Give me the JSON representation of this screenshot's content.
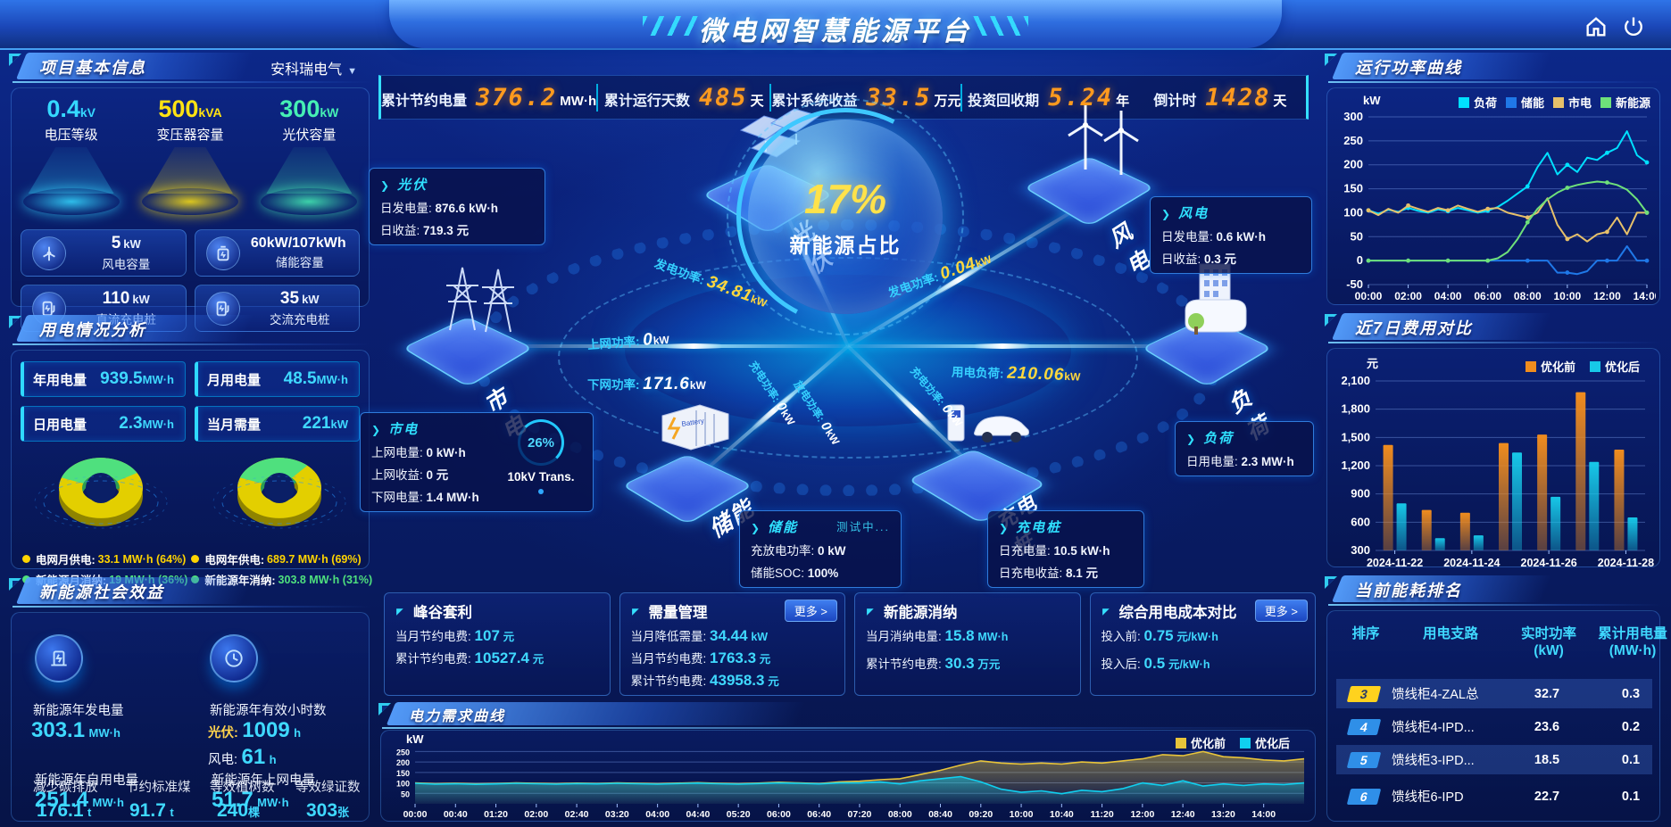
{
  "header": {
    "title": "微电网智慧能源平台"
  },
  "stats_bar": {
    "items": [
      {
        "label": "累计节约电量",
        "value": "376.2",
        "unit": "MW·h"
      },
      {
        "label": "累计运行天数",
        "value": "485",
        "unit": "天"
      },
      {
        "label": "累计系统收益",
        "value": "33.5",
        "unit": "万元"
      },
      {
        "label": "投资回收期",
        "value": "5.24",
        "unit": "年"
      },
      {
        "label": "倒计时",
        "value": "1428",
        "unit": "天"
      }
    ]
  },
  "project_info": {
    "title": "项目基本信息",
    "company": "安科瑞电气",
    "spotlights": [
      {
        "value": "0.4",
        "unit": "kV",
        "label": "电压等级",
        "color": "#35d8ff"
      },
      {
        "value": "500",
        "unit": "kVA",
        "label": "变压器容量",
        "color": "#ffe312"
      },
      {
        "value": "300",
        "unit": "kW",
        "label": "光伏容量",
        "color": "#46f0b4"
      }
    ],
    "cards": [
      {
        "icon": "wind-turbine-icon",
        "value": "5",
        "unit": "kW",
        "label": "风电容量"
      },
      {
        "icon": "battery-icon",
        "value": "60kW/107kWh",
        "unit": "",
        "label": "储能容量"
      },
      {
        "icon": "dc-charger-icon",
        "value": "110",
        "unit": "kW",
        "label": "直流充电桩"
      },
      {
        "icon": "ac-charger-icon",
        "value": "35",
        "unit": "kW",
        "label": "交流充电桩"
      }
    ]
  },
  "power_analysis": {
    "title": "用电情况分析",
    "chips": [
      {
        "label": "年用电量",
        "value": "939.5",
        "unit": "MW·h"
      },
      {
        "label": "月用电量",
        "value": "48.5",
        "unit": "MW·h"
      },
      {
        "label": "日用电量",
        "value": "2.3",
        "unit": "MW·h"
      },
      {
        "label": "当月需量",
        "value": "221",
        "unit": "kW"
      }
    ],
    "donuts": [
      {
        "grid_pct": 64,
        "renew_pct": 36,
        "legend": [
          {
            "label": "电网月供电:",
            "value": "33.1 MW·h (64%)",
            "color": "#ffd400"
          },
          {
            "label": "新能源月消纳:",
            "value": "19 MW·h (36%)",
            "color": "#4fe07e"
          }
        ]
      },
      {
        "grid_pct": 69,
        "renew_pct": 31,
        "legend": [
          {
            "label": "电网年供电:",
            "value": "689.7 MW·h (69%)",
            "color": "#ffd400"
          },
          {
            "label": "新能源年消纳:",
            "value": "303.8 MW·h (31%)",
            "color": "#4fe07e"
          }
        ]
      }
    ]
  },
  "social": {
    "title": "新能源社会效益",
    "gen": {
      "label": "新能源年发电量",
      "value": "303.1",
      "unit": "MW·h"
    },
    "hours": {
      "label": "新能源年有效小时数",
      "pv_label": "光伏:",
      "pv_value": "1009",
      "pv_unit": "h",
      "wind_label": "风电:",
      "wind_value": "61",
      "wind_unit": "h"
    },
    "self_use": {
      "label": "新能源年自用电量",
      "value": "251.4",
      "unit": "MW·h"
    },
    "co2": {
      "label": "减少碳排放",
      "value": "176.1",
      "unit": "t"
    },
    "coal": {
      "label": "节约标准煤",
      "value": "91.7",
      "unit": "t"
    },
    "to_grid": {
      "label": "新能源年上网电量",
      "value": "51.7",
      "unit": "MW·h"
    },
    "trees": {
      "label": "等效植树数",
      "value": "240",
      "unit": "棵"
    },
    "certs": {
      "label": "等效绿证数",
      "value": "303",
      "unit": "张"
    }
  },
  "diagram": {
    "center": {
      "pct": "17%",
      "label": "新能源占比"
    },
    "nodes": {
      "pv": "光伏",
      "wind": "风电",
      "grid": "市电",
      "storage": "储能",
      "charger": "充电桩",
      "load": "负荷"
    },
    "boxes": {
      "pv": {
        "title": "光伏",
        "rows": [
          {
            "k": "日发电量:",
            "v": "876.6 kW·h"
          },
          {
            "k": "日收益:",
            "v": "719.3 元"
          }
        ]
      },
      "wind": {
        "title": "风电",
        "rows": [
          {
            "k": "日发电量:",
            "v": "0.6 kW·h"
          },
          {
            "k": "日收益:",
            "v": "0.3 元"
          }
        ]
      },
      "grid": {
        "title": "市电",
        "rows": [
          {
            "k": "上网电量:",
            "v": "0 kW·h"
          },
          {
            "k": "上网收益:",
            "v": "0 元"
          },
          {
            "k": "下网电量:",
            "v": "1.4 MW·h"
          }
        ],
        "transformer": {
          "pct": "26%",
          "name": "10kV Trans."
        }
      },
      "storage": {
        "title": "储能",
        "status": "测试中...",
        "rows": [
          {
            "k": "充放电功率:",
            "v": "0 kW"
          },
          {
            "k": "储能SOC:",
            "v": "100%"
          }
        ]
      },
      "charger": {
        "title": "充电桩",
        "rows": [
          {
            "k": "日充电量:",
            "v": "10.5 kW·h"
          },
          {
            "k": "日充电收益:",
            "v": "8.1 元"
          }
        ]
      },
      "load": {
        "title": "负荷",
        "rows": [
          {
            "k": "日用电量:",
            "v": "2.3 MW·h"
          }
        ]
      }
    },
    "flows": [
      {
        "label": "发电功率:",
        "value": "34.81",
        "unit": "kW",
        "color": "#ffd83d"
      },
      {
        "label": "上网功率:",
        "value": "0",
        "unit": "kW",
        "color": "#ffffff"
      },
      {
        "label": "下网功率:",
        "value": "171.6",
        "unit": "kW",
        "color": "#ffffff"
      },
      {
        "label": "发电功率:",
        "value": "0.04",
        "unit": "kW",
        "color": "#ffd83d"
      },
      {
        "label": "用电负荷:",
        "value": "210.06",
        "unit": "kW",
        "color": "#ffd83d"
      },
      {
        "label": "充电功率:",
        "value": "0",
        "unit": "kW",
        "color": "#ffffff"
      },
      {
        "label": "放电功率:",
        "value": "0",
        "unit": "kW",
        "color": "#ffffff"
      },
      {
        "label": "充电功率:",
        "value": "0",
        "unit": "kW",
        "color": "#ffffff"
      }
    ]
  },
  "strategies": [
    {
      "title": "峰谷套利",
      "rows": [
        {
          "k": "当月节约电费:",
          "v": "107",
          "u": "元"
        },
        {
          "k": "累计节约电费:",
          "v": "10527.4",
          "u": "元"
        }
      ]
    },
    {
      "title": "需量管理",
      "more": "更多 >",
      "rows": [
        {
          "k": "当月降低需量:",
          "v": "34.44",
          "u": "kW"
        },
        {
          "k": "当月节约电费:",
          "v": "1763.3",
          "u": "元"
        },
        {
          "k": "累计节约电费:",
          "v": "43958.3",
          "u": "元"
        }
      ]
    },
    {
      "title": "新能源消纳",
      "rows": [
        {
          "k": "当月消纳电量:",
          "v": "15.8",
          "u": "MW·h"
        },
        {
          "k": "累计节约电费:",
          "v": "30.3",
          "u": "万元"
        }
      ]
    },
    {
      "title": "综合用电成本对比",
      "more": "更多 >",
      "rows": [
        {
          "k": "投入前:",
          "v": "0.75",
          "u": "元/kW·h"
        },
        {
          "k": "投入后:",
          "v": "0.5",
          "u": "元/kW·h"
        }
      ]
    }
  ],
  "panels": {
    "demand": "电力需求曲线",
    "power_curve": "运行功率曲线",
    "cost": "近7日费用对比",
    "ranking": "当前能耗排名"
  },
  "ranking": {
    "headers": [
      {
        "l1": "排序",
        "l2": ""
      },
      {
        "l1": "用电支路",
        "l2": ""
      },
      {
        "l1": "实时功率",
        "l2": "(kW)"
      },
      {
        "l1": "累计用电量",
        "l2": "(MW·h)"
      }
    ],
    "rows": [
      {
        "rank": "3",
        "badge_bg": "#ffd21e",
        "badge_fg": "#273a66",
        "branch": "馈线柜4-ZAL总",
        "power": "32.7",
        "energy": "0.3"
      },
      {
        "rank": "4",
        "badge_bg": "#2f8fe8",
        "badge_fg": "#ffffff",
        "branch": "馈线柜4-IPD...",
        "power": "23.6",
        "energy": "0.2"
      },
      {
        "rank": "5",
        "badge_bg": "#2f8fe8",
        "badge_fg": "#ffffff",
        "branch": "馈线柜3-IPD...",
        "power": "18.5",
        "energy": "0.1"
      },
      {
        "rank": "6",
        "badge_bg": "#2f8fe8",
        "badge_fg": "#ffffff",
        "branch": "馈线柜6-IPD",
        "power": "22.7",
        "energy": "0.1"
      }
    ]
  },
  "chart_data": [
    {
      "id": "power-curve",
      "type": "line",
      "title": "运行功率曲线",
      "ylabel": "kW",
      "ylim": [
        -50,
        300
      ],
      "yticks": [
        -50,
        0,
        50,
        100,
        150,
        200,
        250,
        300
      ],
      "x_labels": [
        "00:00",
        "02:00",
        "04:00",
        "06:00",
        "08:00",
        "10:00",
        "12:00",
        "14:00"
      ],
      "x_label_end_frac": 1,
      "legend_position": "top",
      "grid": true,
      "series": [
        {
          "name": "负荷",
          "color": "#00e0ff",
          "values": [
            105,
            98,
            106,
            102,
            110,
            104,
            100,
            107,
            103,
            110,
            105,
            100,
            104,
            112,
            125,
            140,
            155,
            195,
            225,
            180,
            200,
            185,
            215,
            210,
            225,
            235,
            270,
            220,
            205
          ]
        },
        {
          "name": "储能",
          "color": "#1f78e8",
          "values": [
            0,
            0,
            0,
            0,
            0,
            0,
            0,
            0,
            0,
            0,
            0,
            0,
            0,
            0,
            0,
            0,
            0,
            0,
            0,
            -25,
            -25,
            -28,
            -22,
            0,
            0,
            0,
            30,
            0,
            0
          ]
        },
        {
          "name": "市电",
          "color": "#e6c06a",
          "values": [
            105,
            95,
            108,
            100,
            115,
            108,
            102,
            110,
            105,
            115,
            108,
            102,
            108,
            110,
            100,
            95,
            90,
            100,
            130,
            75,
            45,
            55,
            40,
            55,
            60,
            90,
            55,
            100,
            100
          ]
        },
        {
          "name": "新能源",
          "color": "#6ee07a",
          "values": [
            0,
            0,
            0,
            0,
            0,
            0,
            0,
            0,
            0,
            0,
            0,
            0,
            0,
            5,
            18,
            45,
            80,
            108,
            128,
            142,
            152,
            158,
            162,
            165,
            163,
            158,
            148,
            128,
            100
          ]
        }
      ]
    },
    {
      "id": "cost-compare",
      "type": "bar",
      "title": "近7日费用对比",
      "ylabel": "元",
      "ylim": [
        300,
        2100
      ],
      "yticks": [
        300,
        600,
        900,
        1200,
        1500,
        1800,
        2100
      ],
      "categories": [
        "2024-11-22",
        "2024-11-23",
        "2024-11-24",
        "2024-11-25",
        "2024-11-26",
        "2024-11-27",
        "2024-11-28"
      ],
      "x_tick_labels": [
        "2024-11-22",
        "2024-11-24",
        "2024-11-26",
        "2024-11-28"
      ],
      "legend_position": "top",
      "grid": true,
      "series": [
        {
          "name": "优化前",
          "color": "#f08c1e",
          "values": [
            1420,
            730,
            700,
            1440,
            1530,
            1980,
            1370
          ]
        },
        {
          "name": "优化后",
          "color": "#17c8e8",
          "values": [
            800,
            430,
            460,
            1340,
            870,
            1240,
            650
          ]
        }
      ]
    },
    {
      "id": "demand-curve",
      "type": "line",
      "title": "电力需求曲线",
      "ylabel": "kW",
      "ylim": [
        0,
        290
      ],
      "yticks": [
        50,
        100,
        150,
        200,
        250
      ],
      "x_labels": [
        "00:00",
        "00:40",
        "01:20",
        "02:00",
        "02:40",
        "03:20",
        "04:00",
        "04:40",
        "05:20",
        "06:00",
        "06:40",
        "07:20",
        "08:00",
        "08:40",
        "09:20",
        "10:00",
        "10:40",
        "11:20",
        "12:00",
        "12:40",
        "13:20",
        "14:00"
      ],
      "x_label_end_frac": 0.9545,
      "legend_position": "top-right",
      "grid": true,
      "area": true,
      "series": [
        {
          "name": "优化前",
          "color": "#e8c43a",
          "values": [
            100,
            96,
            98,
            95,
            97,
            100,
            98,
            96,
            99,
            97,
            100,
            98,
            96,
            99,
            101,
            98,
            96,
            99,
            103,
            100,
            97,
            105,
            108,
            115,
            120,
            140,
            160,
            185,
            205,
            195,
            190,
            195,
            190,
            200,
            195,
            205,
            215,
            235,
            230,
            250,
            225,
            220,
            210,
            205,
            215
          ]
        },
        {
          "name": "优化后",
          "color": "#10d0f0",
          "values": [
            98,
            94,
            96,
            93,
            95,
            98,
            96,
            94,
            97,
            95,
            98,
            96,
            94,
            97,
            99,
            96,
            94,
            97,
            100,
            98,
            95,
            100,
            100,
            105,
            95,
            110,
            120,
            130,
            105,
            70,
            55,
            62,
            48,
            65,
            58,
            72,
            100,
            88,
            110,
            85,
            95,
            88,
            95,
            92,
            100
          ]
        }
      ]
    }
  ]
}
